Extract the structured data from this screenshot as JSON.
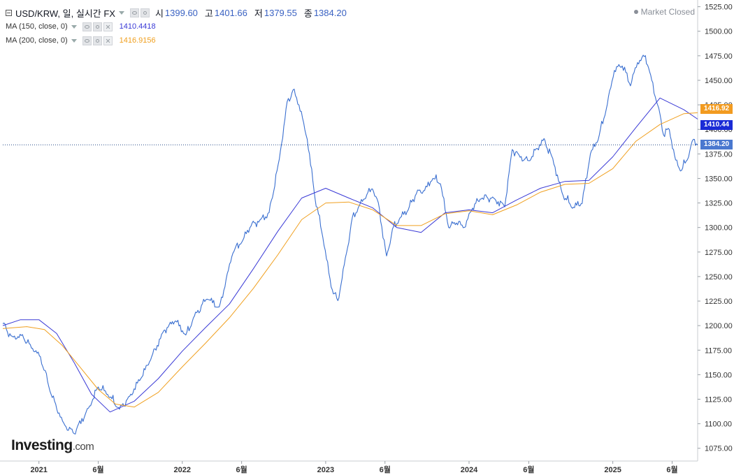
{
  "header": {
    "collapse_icon": "collapse-square-icon",
    "symbol_title": "USD/KRW, 일, 실시간 FX",
    "open_label": "시",
    "open_value": "1399.60",
    "high_label": "고",
    "high_value": "1401.66",
    "low_label": "저",
    "low_value": "1379.55",
    "close_label": "종",
    "close_value": "1384.20",
    "market_status": "Market Closed"
  },
  "indicators": [
    {
      "label": "MA (150, close, 0)",
      "value": "1410.4418",
      "color": "#3a3ad6"
    },
    {
      "label": "MA (200, close, 0)",
      "value": "1416.9156",
      "color": "#f0a020"
    }
  ],
  "price_tags": {
    "ma200": "1416.92",
    "ma150": "1410.44",
    "last": "1384.20"
  },
  "logo": {
    "main": "Investing",
    "suffix": ".com"
  },
  "colors": {
    "price": "#3a6fd0",
    "ma150": "#3a3ad6",
    "ma200": "#f0a020",
    "last_tag": "#4a78cf",
    "ma150_tag": "#1a2bd6",
    "ma200_tag": "#f29b20"
  },
  "chart_data": {
    "type": "line",
    "title": "USD/KRW, 일, 실시간 FX",
    "xlabel": "",
    "ylabel": "",
    "x_tick_labels": [
      "2021",
      "6월",
      "2022",
      "6월",
      "2023",
      "6월",
      "2024",
      "6월",
      "2025",
      "6월"
    ],
    "x_tick_dates": [
      "2021-01-01",
      "2021-06-01",
      "2022-01-01",
      "2022-06-01",
      "2023-01-01",
      "2023-06-01",
      "2024-01-01",
      "2024-06-01",
      "2025-01-01",
      "2025-06-01"
    ],
    "y_ticks": [
      1075,
      1100,
      1125,
      1150,
      1175,
      1200,
      1225,
      1250,
      1275,
      1300,
      1325,
      1350,
      1375,
      1400,
      1425,
      1450,
      1475,
      1500,
      1525
    ],
    "ylim": [
      1062,
      1529
    ],
    "x_range": [
      "2020-10-01",
      "2025-08-05"
    ],
    "grid": false,
    "last_price": 1384.2,
    "series": [
      {
        "name": "USD/KRW",
        "color": "#3a6fd0",
        "x": [
          "2020-10-01",
          "2020-10-25",
          "2020-11-20",
          "2020-12-10",
          "2021-01-05",
          "2021-02-01",
          "2021-03-05",
          "2021-04-01",
          "2021-05-10",
          "2021-06-01",
          "2021-06-25",
          "2021-07-25",
          "2021-08-20",
          "2021-09-20",
          "2021-10-15",
          "2021-11-15",
          "2021-12-15",
          "2022-01-10",
          "2022-02-01",
          "2022-03-05",
          "2022-04-05",
          "2022-05-10",
          "2022-06-01",
          "2022-06-25",
          "2022-07-20",
          "2022-08-10",
          "2022-09-05",
          "2022-09-25",
          "2022-10-10",
          "2022-10-25",
          "2022-11-15",
          "2022-12-05",
          "2022-12-25",
          "2023-01-15",
          "2023-02-01",
          "2023-02-20",
          "2023-03-10",
          "2023-03-25",
          "2023-04-10",
          "2023-04-30",
          "2023-05-15",
          "2023-06-05",
          "2023-06-20",
          "2023-07-10",
          "2023-07-30",
          "2023-08-20",
          "2023-09-10",
          "2023-10-01",
          "2023-10-20",
          "2023-11-10",
          "2023-11-30",
          "2023-12-20",
          "2024-01-10",
          "2024-02-01",
          "2024-03-01",
          "2024-04-01",
          "2024-04-20",
          "2024-05-10",
          "2024-06-01",
          "2024-06-20",
          "2024-07-10",
          "2024-08-01",
          "2024-08-25",
          "2024-09-20",
          "2024-10-15",
          "2024-11-05",
          "2024-11-25",
          "2024-12-15",
          "2025-01-05",
          "2025-01-25",
          "2025-02-15",
          "2025-03-05",
          "2025-03-25",
          "2025-04-10",
          "2025-04-25",
          "2025-05-10",
          "2025-05-25",
          "2025-06-10",
          "2025-06-25",
          "2025-07-10",
          "2025-07-25",
          "2025-08-05"
        ],
        "values": [
          1202,
          1188,
          1190,
          1180,
          1168,
          1130,
          1100,
          1090,
          1118,
          1138,
          1130,
          1115,
          1128,
          1148,
          1168,
          1195,
          1205,
          1190,
          1210,
          1228,
          1218,
          1275,
          1285,
          1302,
          1308,
          1315,
          1370,
          1428,
          1440,
          1425,
          1390,
          1330,
          1290,
          1240,
          1225,
          1268,
          1310,
          1320,
          1330,
          1340,
          1325,
          1270,
          1298,
          1310,
          1318,
          1335,
          1338,
          1350,
          1345,
          1300,
          1305,
          1300,
          1320,
          1330,
          1330,
          1322,
          1380,
          1372,
          1368,
          1380,
          1390,
          1370,
          1335,
          1320,
          1325,
          1375,
          1390,
          1420,
          1460,
          1465,
          1445,
          1468,
          1475,
          1450,
          1425,
          1395,
          1400,
          1368,
          1358,
          1370,
          1390,
          1384.2
        ]
      },
      {
        "name": "MA (150, close, 0)",
        "color": "#3a3ad6",
        "x": [
          "2020-10-01",
          "2020-11-15",
          "2021-01-01",
          "2021-02-15",
          "2021-04-01",
          "2021-05-15",
          "2021-07-01",
          "2021-09-01",
          "2021-11-01",
          "2022-01-01",
          "2022-03-01",
          "2022-05-01",
          "2022-07-01",
          "2022-09-01",
          "2022-11-01",
          "2023-01-01",
          "2023-03-01",
          "2023-05-01",
          "2023-07-01",
          "2023-09-01",
          "2023-11-01",
          "2024-01-01",
          "2024-03-01",
          "2024-05-01",
          "2024-07-01",
          "2024-09-01",
          "2024-11-01",
          "2025-01-01",
          "2025-03-01",
          "2025-05-01",
          "2025-07-01",
          "2025-08-05"
        ],
        "values": [
          1200,
          1206,
          1206,
          1192,
          1162,
          1130,
          1112,
          1123,
          1146,
          1174,
          1198,
          1222,
          1258,
          1296,
          1330,
          1340,
          1330,
          1320,
          1300,
          1295,
          1315,
          1318,
          1315,
          1328,
          1340,
          1347,
          1348,
          1372,
          1402,
          1432,
          1420,
          1410.44
        ]
      },
      {
        "name": "MA (200, close, 0)",
        "color": "#f0a020",
        "x": [
          "2020-10-01",
          "2020-12-01",
          "2021-01-15",
          "2021-03-01",
          "2021-04-15",
          "2021-06-01",
          "2021-07-15",
          "2021-09-01",
          "2021-11-01",
          "2022-01-01",
          "2022-03-01",
          "2022-05-01",
          "2022-07-01",
          "2022-09-01",
          "2022-11-01",
          "2023-01-01",
          "2023-03-01",
          "2023-05-01",
          "2023-07-01",
          "2023-09-01",
          "2023-11-01",
          "2024-01-01",
          "2024-03-01",
          "2024-05-01",
          "2024-07-01",
          "2024-09-01",
          "2024-11-01",
          "2025-01-01",
          "2025-03-01",
          "2025-05-01",
          "2025-07-01",
          "2025-08-05"
        ],
        "values": [
          1197,
          1199,
          1196,
          1180,
          1158,
          1135,
          1120,
          1117,
          1132,
          1158,
          1182,
          1208,
          1238,
          1272,
          1308,
          1325,
          1326,
          1318,
          1302,
          1302,
          1314,
          1317,
          1313,
          1323,
          1336,
          1344,
          1345,
          1360,
          1388,
          1405,
          1416,
          1416.92
        ]
      }
    ]
  }
}
